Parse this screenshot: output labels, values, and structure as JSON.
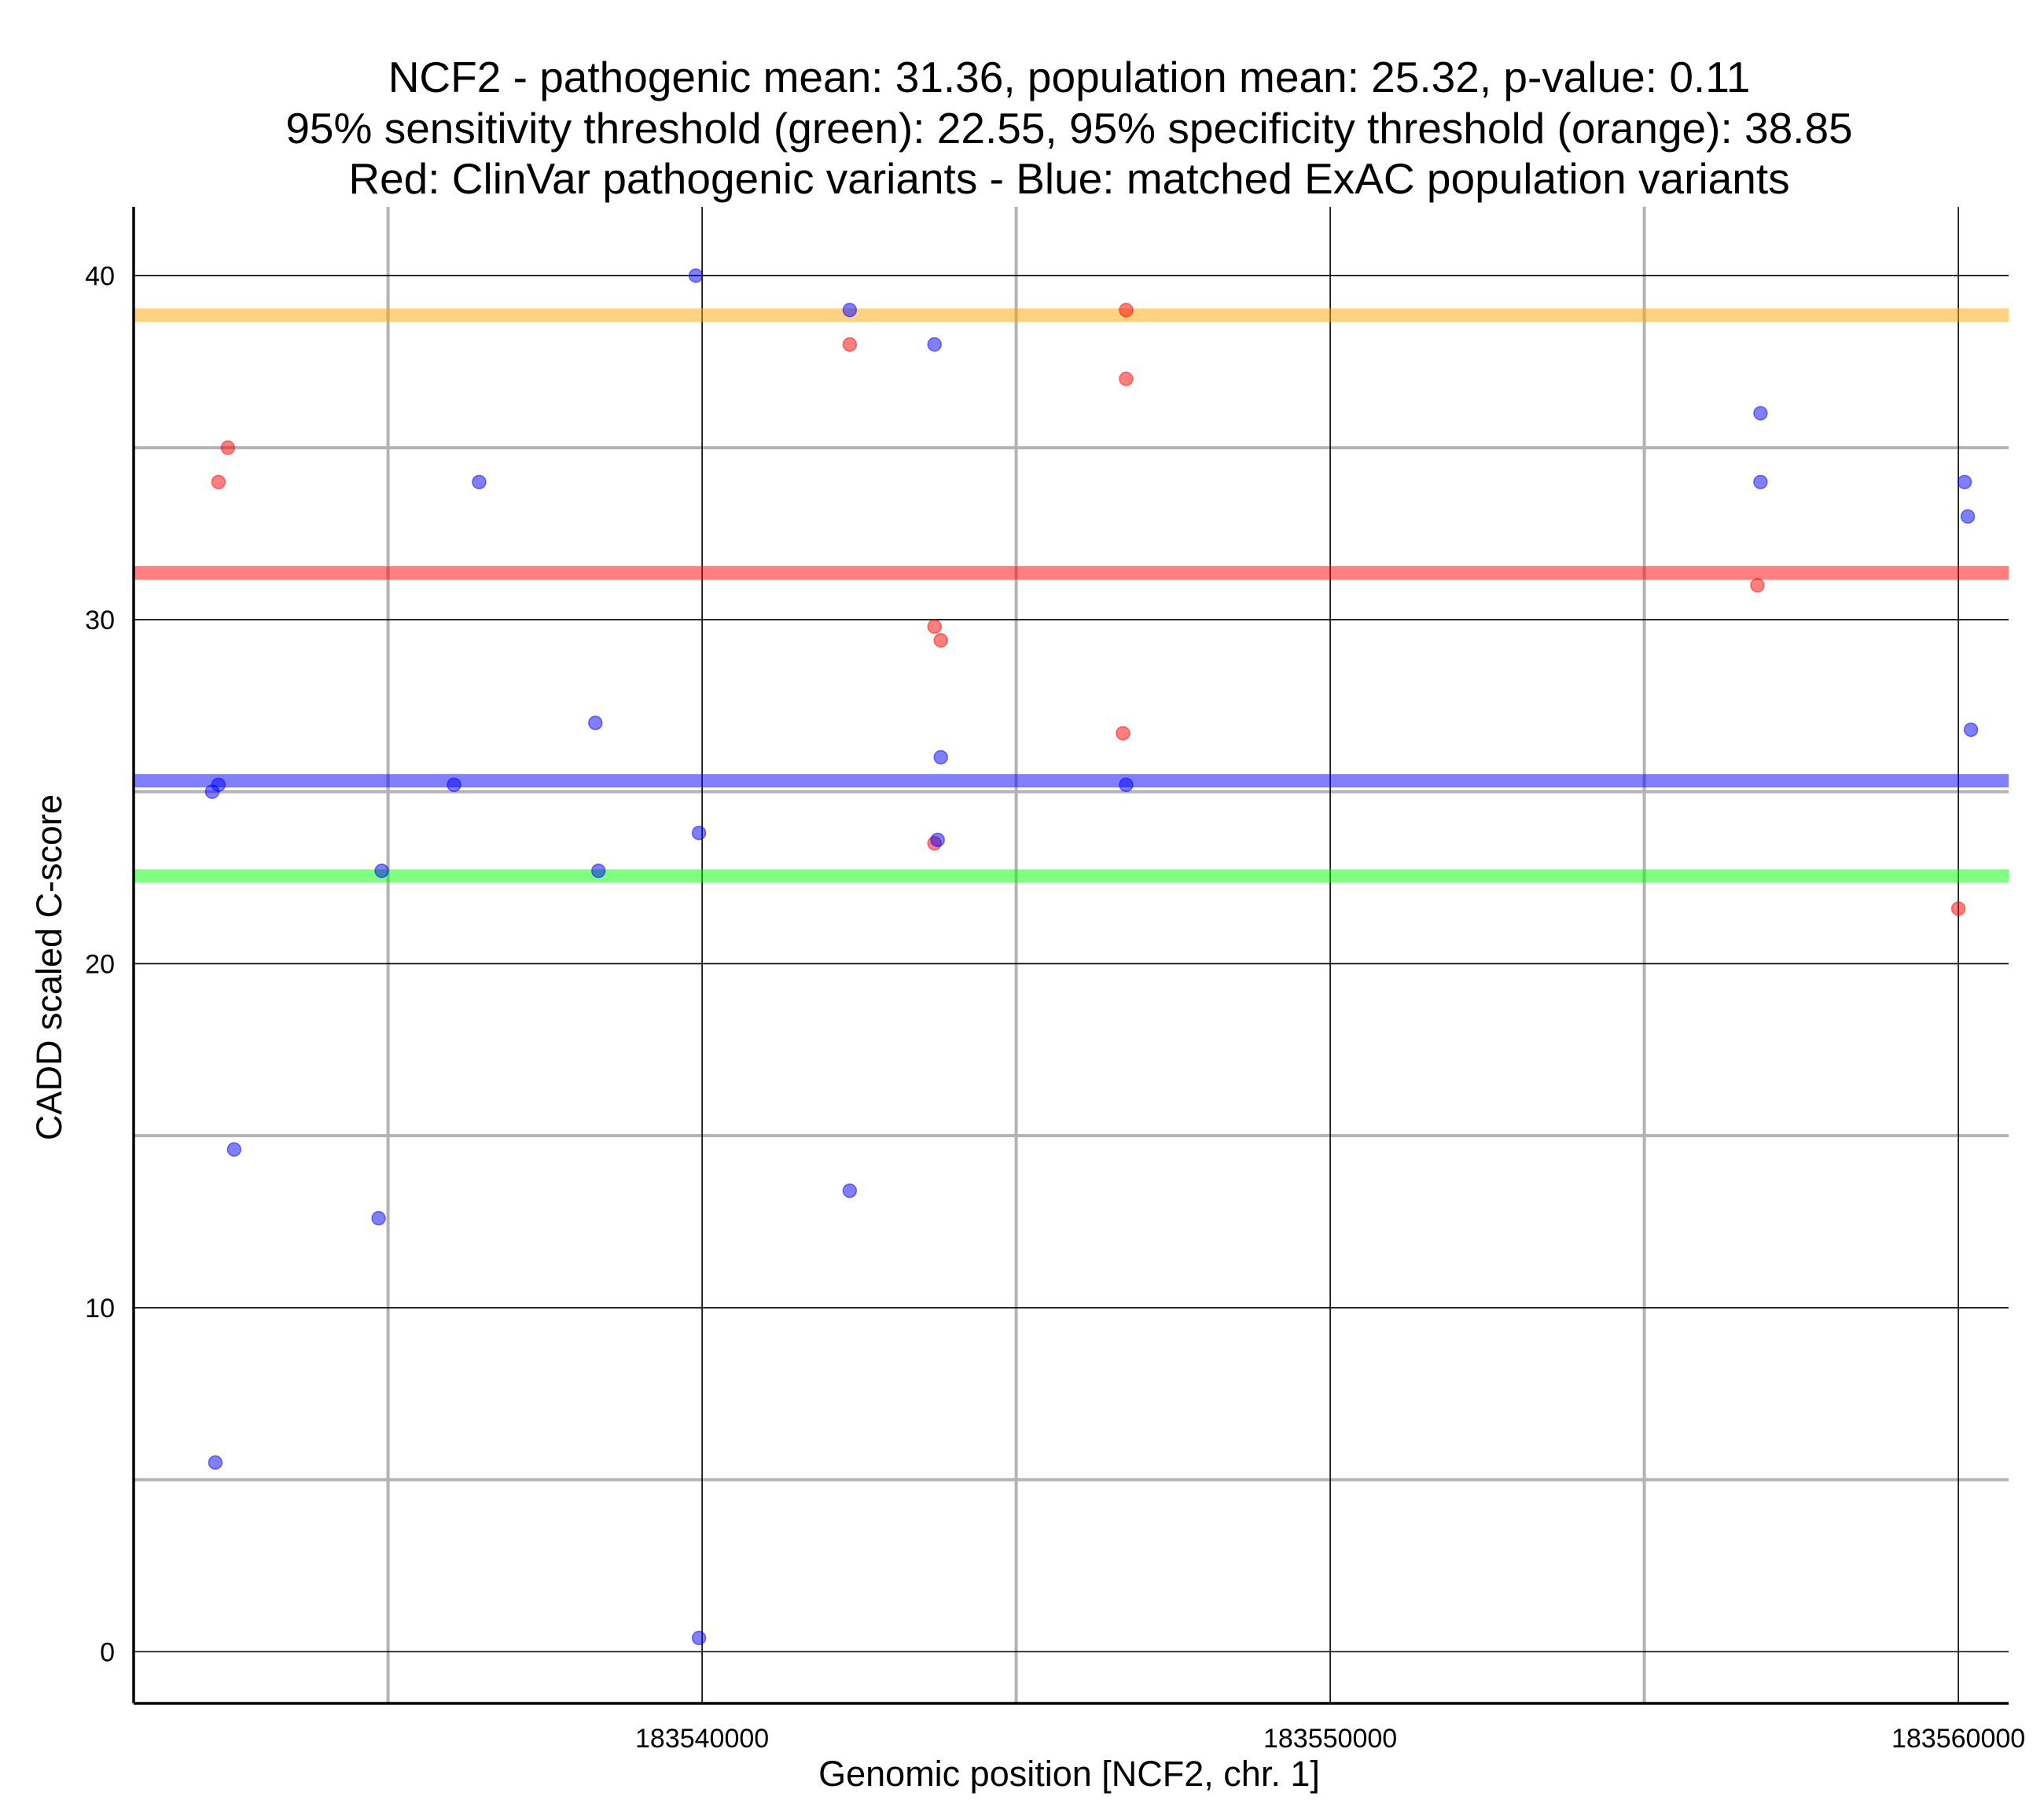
{
  "chart_data": {
    "type": "scatter",
    "title_lines": [
      "NCF2 - pathogenic mean: 31.36, population mean: 25.32, p-value: 0.11",
      "95% sensitivity threshold (green): 22.55, 95% specificity threshold (orange): 38.85",
      "Red: ClinVar pathogenic variants - Blue: matched ExAC population variants"
    ],
    "xlabel": "Genomic position [NCF2, chr. 1]",
    "ylabel": "CADD scaled C-score",
    "xlim": [
      183530950,
      183560800
    ],
    "ylim": [
      -1.5,
      42
    ],
    "x_ticks": [
      183540000,
      183550000,
      183560000
    ],
    "x_tick_labels": [
      "183540000",
      "183550000",
      "183560000"
    ],
    "y_ticks": [
      0,
      10,
      20,
      30,
      40
    ],
    "y_tick_labels": [
      "0",
      "10",
      "20",
      "30",
      "40"
    ],
    "x_minor_grid": [
      183535000,
      183545000,
      183555000
    ],
    "y_minor_grid": [
      5,
      15,
      25,
      35
    ],
    "grid": true,
    "hlines": [
      {
        "name": "specificity threshold (orange)",
        "value": 38.85,
        "color": "#FFA500"
      },
      {
        "name": "pathogenic mean (red)",
        "value": 31.36,
        "color": "#FF0000"
      },
      {
        "name": "population mean (blue)",
        "value": 25.32,
        "color": "#0000FF"
      },
      {
        "name": "sensitivity threshold (green)",
        "value": 22.55,
        "color": "#00FF00"
      }
    ],
    "series": [
      {
        "name": "ClinVar pathogenic variants",
        "color": "#FF0000",
        "points": [
          {
            "x": 183532300,
            "y": 34.0
          },
          {
            "x": 183532450,
            "y": 35.0
          },
          {
            "x": 183542350,
            "y": 38.0
          },
          {
            "x": 183543700,
            "y": 29.8
          },
          {
            "x": 183543800,
            "y": 29.4
          },
          {
            "x": 183543700,
            "y": 23.5
          },
          {
            "x": 183546750,
            "y": 39.0
          },
          {
            "x": 183546750,
            "y": 37.0
          },
          {
            "x": 183546700,
            "y": 26.7
          },
          {
            "x": 183556800,
            "y": 31.0
          },
          {
            "x": 183560000,
            "y": 21.6
          }
        ]
      },
      {
        "name": "matched ExAC population variants",
        "color": "#0000FF",
        "points": [
          {
            "x": 183532200,
            "y": 25.0
          },
          {
            "x": 183532300,
            "y": 25.2
          },
          {
            "x": 183532550,
            "y": 14.6
          },
          {
            "x": 183532250,
            "y": 5.5
          },
          {
            "x": 183534900,
            "y": 22.7
          },
          {
            "x": 183534850,
            "y": 12.6
          },
          {
            "x": 183536050,
            "y": 25.2
          },
          {
            "x": 183536450,
            "y": 34.0
          },
          {
            "x": 183538300,
            "y": 27.0
          },
          {
            "x": 183538350,
            "y": 22.7
          },
          {
            "x": 183539900,
            "y": 40.0
          },
          {
            "x": 183539950,
            "y": 23.8
          },
          {
            "x": 183539950,
            "y": 0.4
          },
          {
            "x": 183542350,
            "y": 39.0
          },
          {
            "x": 183542350,
            "y": 13.4
          },
          {
            "x": 183543700,
            "y": 38.0
          },
          {
            "x": 183543800,
            "y": 26.0
          },
          {
            "x": 183543750,
            "y": 23.6
          },
          {
            "x": 183546750,
            "y": 25.2
          },
          {
            "x": 183556850,
            "y": 36.0
          },
          {
            "x": 183556850,
            "y": 34.0
          },
          {
            "x": 183560100,
            "y": 34.0
          },
          {
            "x": 183560150,
            "y": 33.0
          },
          {
            "x": 183560200,
            "y": 26.8
          }
        ]
      }
    ]
  }
}
